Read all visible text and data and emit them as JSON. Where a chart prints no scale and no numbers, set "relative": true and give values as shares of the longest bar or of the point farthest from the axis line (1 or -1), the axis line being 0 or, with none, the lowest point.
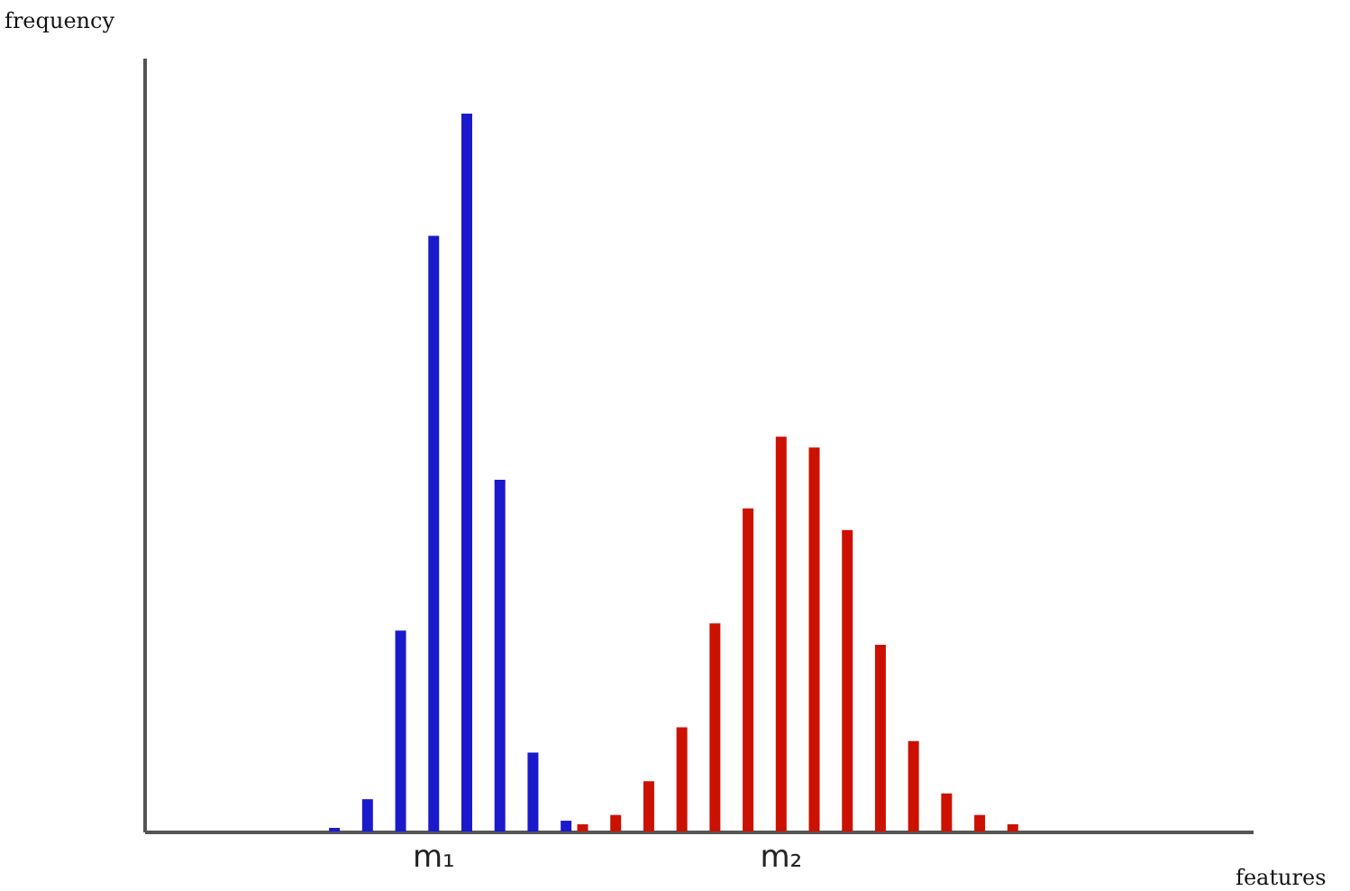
{
  "chart_data": {
    "type": "bar",
    "relative": true,
    "xlabel": "features",
    "ylabel": "frequency",
    "categories": [
      null,
      null,
      null,
      null,
      null,
      null,
      null,
      null,
      null,
      null,
      null,
      null,
      null,
      null,
      null,
      null,
      null,
      "m₁",
      null,
      null,
      null,
      null,
      null,
      null,
      null,
      null,
      null,
      null,
      null,
      null,
      null,
      null,
      null,
      null,
      null,
      null,
      null,
      null,
      "m₂",
      null,
      null,
      null,
      null,
      null,
      null,
      null,
      null,
      null,
      null,
      null,
      null,
      null,
      null,
      null,
      null,
      null,
      null,
      null,
      null,
      null,
      null,
      null,
      null,
      null,
      null,
      null,
      null
    ],
    "values": [
      null,
      null,
      null,
      null,
      null,
      null,
      null,
      null,
      null,
      null,
      null,
      0.005,
      null,
      0.045,
      null,
      0.28,
      null,
      0.83,
      null,
      1,
      null,
      0.49,
      null,
      0.11,
      null,
      0.015,
      0.01,
      null,
      0.023,
      null,
      0.07,
      null,
      0.145,
      null,
      0.29,
      null,
      0.45,
      null,
      0.55,
      null,
      0.535,
      null,
      0.42,
      null,
      0.26,
      null,
      0.126,
      null,
      0.053,
      null,
      0.023,
      null,
      0.01,
      null,
      null,
      null,
      null,
      null,
      null,
      null,
      null,
      null,
      null,
      null,
      null,
      null,
      null
    ],
    "colors": [
      null,
      null,
      null,
      null,
      null,
      null,
      null,
      null,
      null,
      null,
      null,
      "#1a1acc",
      null,
      "#1a1acc",
      null,
      "#1a1acc",
      null,
      "#1a1acc",
      null,
      "#1a1acc",
      null,
      "#1a1acc",
      null,
      "#1a1acc",
      null,
      "#1a1acc",
      "#cc1100",
      null,
      "#cc1100",
      null,
      "#cc1100",
      null,
      "#cc1100",
      null,
      "#cc1100",
      null,
      "#cc1100",
      null,
      "#cc1100",
      null,
      "#cc1100",
      null,
      "#cc1100",
      null,
      "#cc1100",
      null,
      "#cc1100",
      null,
      "#cc1100",
      null,
      "#cc1100",
      null,
      "#cc1100",
      null,
      null,
      null,
      null,
      null,
      null,
      null,
      null,
      null,
      null,
      null,
      null,
      null,
      null
    ]
  }
}
